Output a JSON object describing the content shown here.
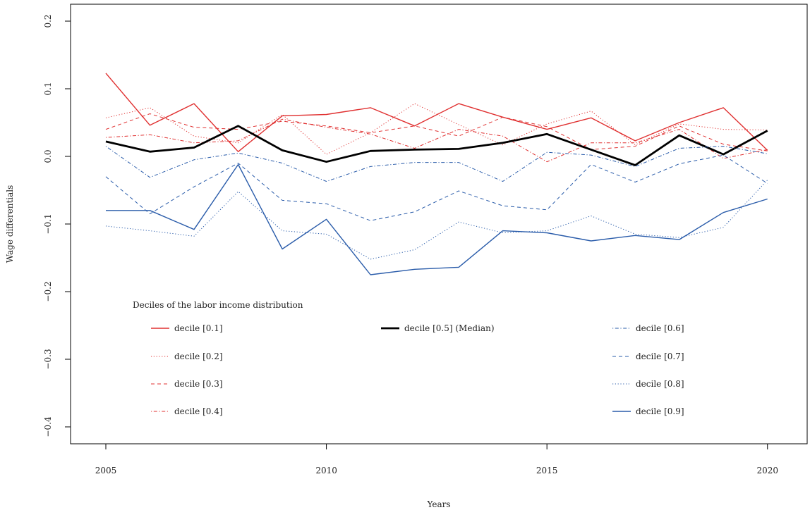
{
  "chart_data": {
    "type": "line",
    "xlabel": "Years",
    "ylabel": "Wage differentials",
    "xlim": [
      2004.2,
      2020.9
    ],
    "ylim": [
      -0.425,
      0.225
    ],
    "x_ticks": [
      2005,
      2010,
      2015,
      2020
    ],
    "x_tick_labels": [
      "2005",
      "2010",
      "2015",
      "2020"
    ],
    "y_ticks": [
      -0.4,
      -0.3,
      -0.2,
      -0.1,
      0.0,
      0.1,
      0.2
    ],
    "y_tick_labels": [
      "−0.4",
      "−0.3",
      "−0.2",
      "−0.1",
      "0.0",
      "0.1",
      "0.2"
    ],
    "grid": false,
    "legend_title": "Deciles of the labor income distribution",
    "legend_position": "bottom-left",
    "x": [
      2005,
      2006,
      2007,
      2008,
      2009,
      2010,
      2011,
      2012,
      2013,
      2014,
      2015,
      2016,
      2017,
      2018,
      2019,
      2020
    ],
    "series": [
      {
        "name": "decile [0.1]",
        "color": "#e03030",
        "dash": "solid",
        "width": 1.4,
        "values": [
          0.123,
          0.046,
          0.078,
          0.007,
          0.06,
          0.062,
          0.072,
          0.045,
          0.078,
          0.058,
          0.04,
          0.057,
          0.023,
          0.05,
          0.072,
          0.009
        ]
      },
      {
        "name": "decile [0.2]",
        "color": "#e03030",
        "dash": "dotted",
        "width": 1.0,
        "values": [
          0.057,
          0.072,
          0.03,
          0.02,
          0.062,
          0.003,
          0.035,
          0.078,
          0.047,
          0.017,
          0.048,
          0.067,
          0.017,
          0.048,
          0.04,
          0.039
        ]
      },
      {
        "name": "decile [0.3]",
        "color": "#e03030",
        "dash": "dashed",
        "width": 1.0,
        "values": [
          0.04,
          0.063,
          0.043,
          0.04,
          0.052,
          0.045,
          0.035,
          0.045,
          0.03,
          0.058,
          0.044,
          0.01,
          0.015,
          0.045,
          0.018,
          0.008
        ]
      },
      {
        "name": "decile [0.4]",
        "color": "#e03030",
        "dash": "dashdot",
        "width": 1.0,
        "values": [
          0.028,
          0.032,
          0.02,
          0.023,
          0.055,
          0.043,
          0.033,
          0.012,
          0.04,
          0.03,
          -0.008,
          0.02,
          0.02,
          0.04,
          -0.003,
          0.01
        ]
      },
      {
        "name": "decile [0.5] (Median)",
        "color": "#000000",
        "dash": "solid",
        "width": 2.8,
        "values": [
          0.022,
          0.007,
          0.013,
          0.045,
          0.009,
          -0.008,
          0.008,
          0.01,
          0.011,
          0.02,
          0.033,
          0.01,
          -0.013,
          0.031,
          0.003,
          0.038
        ]
      },
      {
        "name": "decile [0.6]",
        "color": "#2a5caa",
        "dash": "dashdot",
        "width": 1.0,
        "values": [
          0.015,
          -0.031,
          -0.005,
          0.005,
          -0.01,
          -0.037,
          -0.015,
          -0.009,
          -0.009,
          -0.037,
          0.006,
          0.002,
          -0.015,
          0.012,
          0.015,
          0.004
        ]
      },
      {
        "name": "decile [0.7]",
        "color": "#2a5caa",
        "dash": "dashed",
        "width": 1.0,
        "values": [
          -0.03,
          -0.085,
          -0.045,
          -0.01,
          -0.065,
          -0.07,
          -0.095,
          -0.082,
          -0.051,
          -0.073,
          -0.079,
          -0.012,
          -0.038,
          -0.011,
          0.002,
          -0.04
        ]
      },
      {
        "name": "decile [0.8]",
        "color": "#2a5caa",
        "dash": "dotted",
        "width": 1.0,
        "values": [
          -0.103,
          -0.11,
          -0.118,
          -0.052,
          -0.11,
          -0.115,
          -0.152,
          -0.138,
          -0.097,
          -0.113,
          -0.11,
          -0.088,
          -0.115,
          -0.12,
          -0.105,
          -0.035
        ]
      },
      {
        "name": "decile [0.9]",
        "color": "#2a5caa",
        "dash": "solid",
        "width": 1.4,
        "values": [
          -0.08,
          -0.08,
          -0.108,
          -0.012,
          -0.137,
          -0.093,
          -0.175,
          -0.167,
          -0.164,
          -0.11,
          -0.113,
          -0.125,
          -0.117,
          -0.123,
          -0.083,
          -0.063
        ]
      }
    ]
  }
}
